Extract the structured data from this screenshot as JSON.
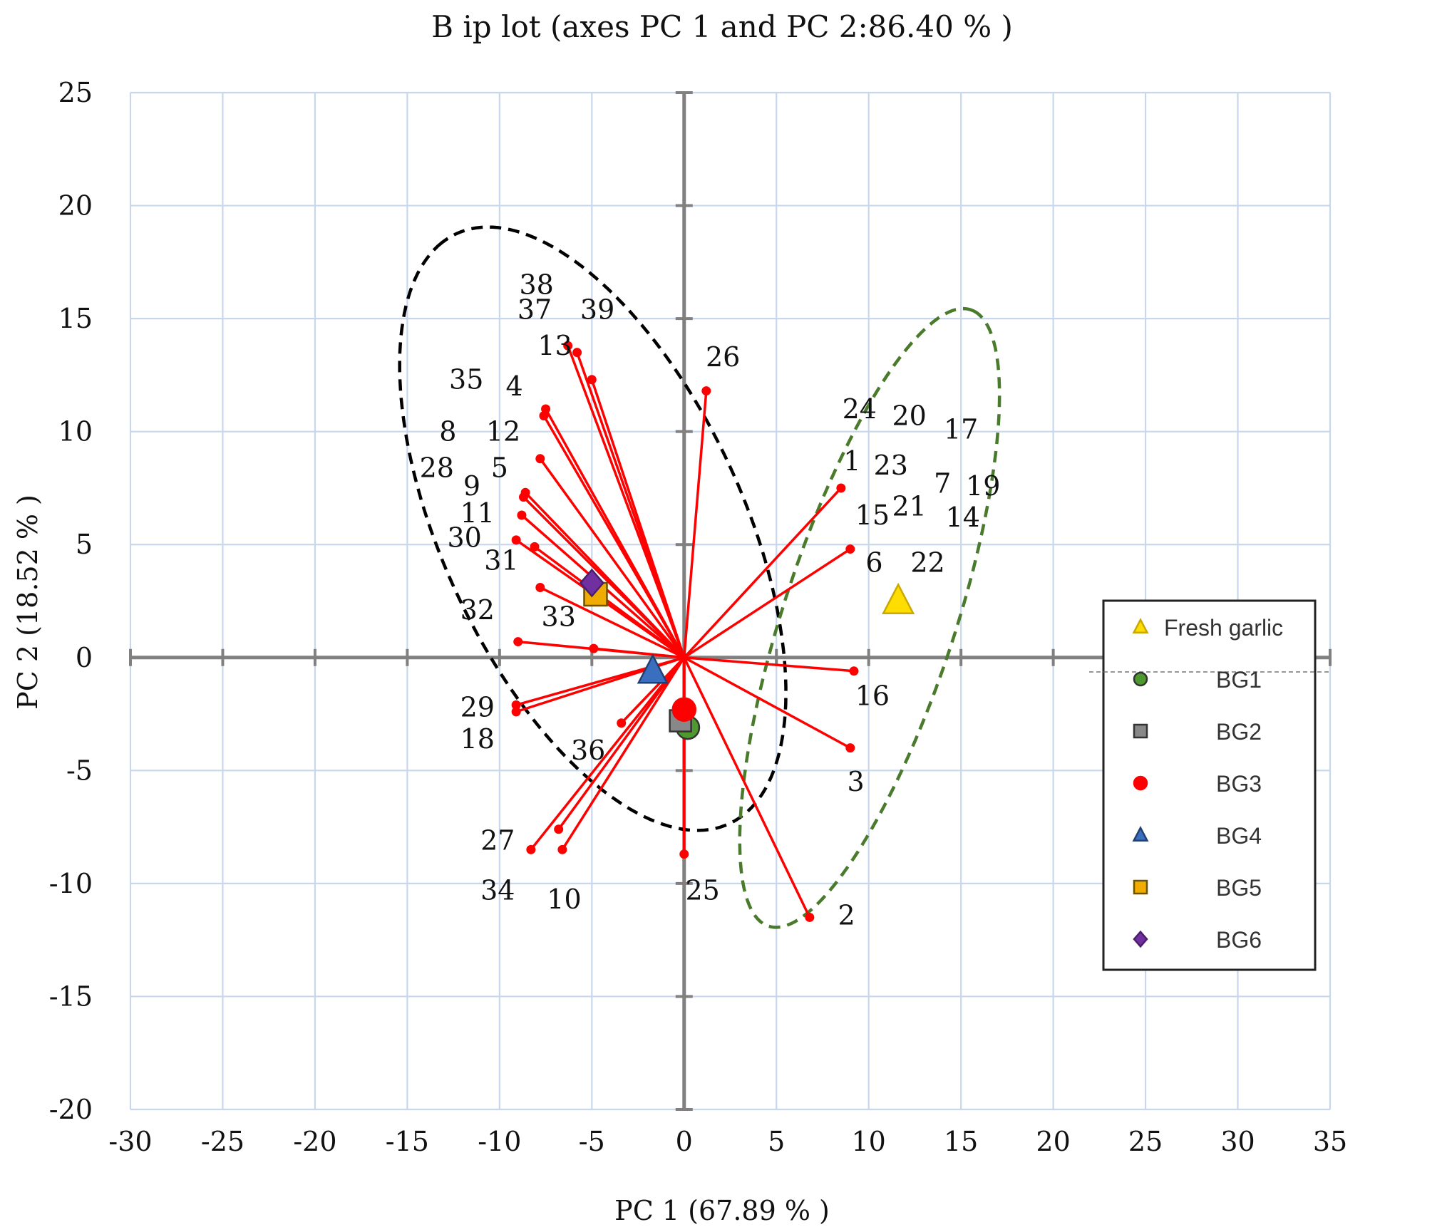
{
  "chart_data": {
    "type": "scatter",
    "title": "B ip lot (axes PC 1 and PC 2:86.40 % )",
    "xlabel": "PC 1 (67.89 % )",
    "ylabel": "PC 2 (18.52 % )",
    "xlim": [
      -30,
      35
    ],
    "ylim": [
      -20,
      25
    ],
    "x_ticks": [
      -30,
      -25,
      -20,
      -15,
      -10,
      -5,
      0,
      5,
      10,
      15,
      20,
      25,
      30,
      35
    ],
    "x_tick_labels": [
      "-30",
      "-25",
      "-20",
      "-15",
      "-10",
      "-5",
      "0",
      "5",
      "10",
      "15",
      "20",
      "25",
      "30",
      "35"
    ],
    "y_ticks": [
      25,
      20,
      15,
      10,
      5,
      0,
      -5,
      -10,
      -15,
      -20
    ],
    "y_tick_labels": [
      "25",
      "20",
      "15",
      "10",
      "5",
      "0",
      "-5",
      "-10",
      "-15",
      "-20"
    ],
    "grid": true,
    "legend_position": "right",
    "colors": {
      "vector": "#ff0000",
      "axis": "#808080",
      "grid": "#c9d7ec",
      "ellipse_left": "#000000",
      "ellipse_right": "#4a7a2c"
    },
    "loading_vectors": [
      {
        "label": "1",
        "x": 8.5,
        "y": 7.5
      },
      {
        "label": "15",
        "x": 9.0,
        "y": 4.8
      },
      {
        "label": "16",
        "x": 9.2,
        "y": -0.6
      },
      {
        "label": "3",
        "x": 9.0,
        "y": -4.0
      },
      {
        "label": "2",
        "x": 6.8,
        "y": -11.5
      },
      {
        "label": "25",
        "x": 0.0,
        "y": -8.7
      },
      {
        "label": "26",
        "x": 1.2,
        "y": 11.8
      },
      {
        "label": "39",
        "x": -5.0,
        "y": 12.3
      },
      {
        "label": "38",
        "x": -5.8,
        "y": 13.5
      },
      {
        "label": "37",
        "x": -6.3,
        "y": 13.8
      },
      {
        "label": "13",
        "x": -7.5,
        "y": 11.0
      },
      {
        "label": "4",
        "x": -7.6,
        "y": 10.7
      },
      {
        "label": "35",
        "x": -7.8,
        "y": 8.8
      },
      {
        "label": "12",
        "x": -8.6,
        "y": 7.3
      },
      {
        "label": "8",
        "x": -8.7,
        "y": 7.1
      },
      {
        "label": "28",
        "x": -8.8,
        "y": 6.3
      },
      {
        "label": "9",
        "x": -8.1,
        "y": 4.9
      },
      {
        "label": "5",
        "x": -9.1,
        "y": 5.2
      },
      {
        "label": "11",
        "x": -7.8,
        "y": 3.1
      },
      {
        "label": "33",
        "x": -4.9,
        "y": 0.4
      },
      {
        "label": "30",
        "x": -9.0,
        "y": 0.7
      },
      {
        "label": "29",
        "x": -9.1,
        "y": -2.1
      },
      {
        "label": "18",
        "x": -9.1,
        "y": -2.4
      },
      {
        "label": "36",
        "x": -3.4,
        "y": -2.9
      },
      {
        "label": "27",
        "x": -6.8,
        "y": -7.6
      },
      {
        "label": "34",
        "x": -8.3,
        "y": -8.5
      },
      {
        "label": "10",
        "x": -6.6,
        "y": -8.5
      }
    ],
    "point_labels": [
      {
        "text": "38",
        "x": -8.0,
        "y": 16.5
      },
      {
        "text": "37",
        "x": -8.1,
        "y": 15.4
      },
      {
        "text": "39",
        "x": -4.7,
        "y": 15.4
      },
      {
        "text": "13",
        "x": -7.0,
        "y": 13.8
      },
      {
        "text": "26",
        "x": 2.1,
        "y": 13.3
      },
      {
        "text": "35",
        "x": -11.8,
        "y": 12.3
      },
      {
        "text": "4",
        "x": -9.2,
        "y": 12.0
      },
      {
        "text": "8",
        "x": -12.8,
        "y": 10.0
      },
      {
        "text": "12",
        "x": -9.8,
        "y": 10.0
      },
      {
        "text": "28",
        "x": -13.4,
        "y": 8.4
      },
      {
        "text": "5",
        "x": -10.0,
        "y": 8.4
      },
      {
        "text": "9",
        "x": -11.5,
        "y": 7.6
      },
      {
        "text": "11",
        "x": -11.2,
        "y": 6.4
      },
      {
        "text": "30",
        "x": -11.9,
        "y": 5.3
      },
      {
        "text": "31",
        "x": -9.9,
        "y": 4.3
      },
      {
        "text": "32",
        "x": -11.2,
        "y": 2.1
      },
      {
        "text": "33",
        "x": -6.8,
        "y": 1.8
      },
      {
        "text": "29",
        "x": -11.2,
        "y": -2.2
      },
      {
        "text": "18",
        "x": -11.2,
        "y": -3.6
      },
      {
        "text": "36",
        "x": -5.2,
        "y": -4.1
      },
      {
        "text": "27",
        "x": -10.1,
        "y": -8.1
      },
      {
        "text": "34",
        "x": -10.1,
        "y": -10.3
      },
      {
        "text": "10",
        "x": -6.5,
        "y": -10.7
      },
      {
        "text": "25",
        "x": 1.0,
        "y": -10.3
      },
      {
        "text": "2",
        "x": 8.8,
        "y": -11.4
      },
      {
        "text": "3",
        "x": 9.3,
        "y": -5.5
      },
      {
        "text": "16",
        "x": 10.2,
        "y": -1.7
      },
      {
        "text": "24",
        "x": 9.5,
        "y": 11.0
      },
      {
        "text": "20",
        "x": 12.2,
        "y": 10.7
      },
      {
        "text": "17",
        "x": 15.0,
        "y": 10.1
      },
      {
        "text": "1",
        "x": 9.1,
        "y": 8.7
      },
      {
        "text": "23",
        "x": 11.2,
        "y": 8.5
      },
      {
        "text": "7",
        "x": 14.0,
        "y": 7.7
      },
      {
        "text": "19",
        "x": 16.2,
        "y": 7.6
      },
      {
        "text": "15",
        "x": 10.2,
        "y": 6.3
      },
      {
        "text": "21",
        "x": 12.2,
        "y": 6.7
      },
      {
        "text": "14",
        "x": 15.1,
        "y": 6.2
      },
      {
        "text": "6",
        "x": 10.3,
        "y": 4.2
      },
      {
        "text": "22",
        "x": 13.2,
        "y": 4.2
      }
    ],
    "series": [
      {
        "name": "Fresh garlic",
        "marker": "triangle",
        "color": "#ffdd00",
        "stroke": "#c9a800",
        "x": 11.6,
        "y": 2.5
      },
      {
        "name": "BG1",
        "marker": "circle",
        "color": "#4e9a2e",
        "stroke": "#333333",
        "x": 0.2,
        "y": -3.1
      },
      {
        "name": "BG2",
        "marker": "square",
        "color": "#888888",
        "stroke": "#333333",
        "x": -0.2,
        "y": -2.8
      },
      {
        "name": "BG3",
        "marker": "circle",
        "color": "#ff0000",
        "stroke": "#ff0000",
        "x": 0.0,
        "y": -2.3
      },
      {
        "name": "BG4",
        "marker": "triangle",
        "color": "#3a6fc0",
        "stroke": "#233f70",
        "x": -1.7,
        "y": -0.6
      },
      {
        "name": "BG5",
        "marker": "square",
        "color": "#f0ac00",
        "stroke": "#6b5200",
        "x": -4.8,
        "y": 2.8
      },
      {
        "name": "BG6",
        "marker": "diamond",
        "color": "#7030a0",
        "stroke": "#4b1f6b",
        "x": -5.0,
        "y": 3.3
      }
    ],
    "ellipses": [
      {
        "name": "left-cluster",
        "cx": -4.95,
        "cy": 5.7,
        "semi_major": 15.07,
        "semi_minor": 7.79,
        "angle_deg": 122.8,
        "style": "dashed"
      },
      {
        "name": "right-cluster",
        "cx": 10.05,
        "cy": 1.75,
        "semi_major": 14.71,
        "semi_minor": 4.54,
        "angle_deg": 67.4,
        "style": "dashed"
      }
    ],
    "legend_entries": [
      "Fresh garlic",
      "BG1",
      "BG2",
      "BG3",
      "BG4",
      "BG5",
      "BG6"
    ]
  }
}
